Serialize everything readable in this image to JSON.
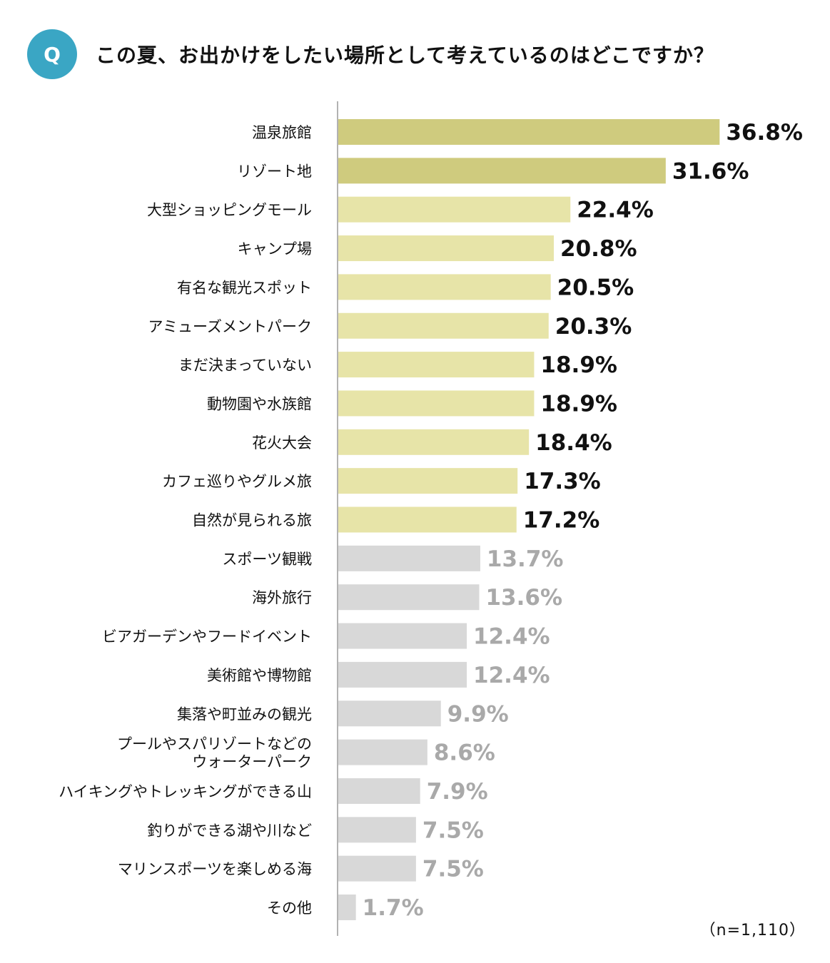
{
  "question_badge": "Q",
  "title": "この夏、お出かけをしたい場所として考えているのはどこですか？",
  "sample_note": "（n=1,110）",
  "colors": {
    "badge": "#3aa6c4",
    "bar_top": "#cfcb7e",
    "bar_mid": "#e7e4a8",
    "bar_low": "#d8d8d8",
    "label_dark": "#111111",
    "label_gray": "#a9a9a9",
    "axis": "#999999"
  },
  "chart_data": {
    "type": "bar",
    "orientation": "horizontal",
    "title": "この夏、お出かけをしたい場所として考えているのはどこですか？",
    "unit": "%",
    "categories": [
      "温泉旅館",
      "リゾート地",
      "大型ショッピングモール",
      "キャンプ場",
      "有名な観光スポット",
      "アミューズメントパーク",
      "まだ決まっていない",
      "動物園や水族館",
      "花火大会",
      "カフェ巡りやグルメ旅",
      "自然が見られる旅",
      "スポーツ観戦",
      "海外旅行",
      "ビアガーデンやフードイベント",
      "美術館や博物館",
      "集落や町並みの観光",
      "プールやスパリゾートなどの\nウォーターパーク",
      "ハイキングやトレッキングができる山",
      "釣りができる湖や川など",
      "マリンスポーツを楽しめる海",
      "その他"
    ],
    "values": [
      36.8,
      31.6,
      22.4,
      20.8,
      20.5,
      20.3,
      18.9,
      18.9,
      18.4,
      17.3,
      17.2,
      13.7,
      13.6,
      12.4,
      12.4,
      9.9,
      8.6,
      7.9,
      7.5,
      7.5,
      1.7
    ],
    "value_labels": [
      "36.8%",
      "31.6%",
      "22.4%",
      "20.8%",
      "20.5%",
      "20.3%",
      "18.9%",
      "18.9%",
      "18.4%",
      "17.3%",
      "17.2%",
      "13.7%",
      "13.6%",
      "12.4%",
      "12.4%",
      "9.9%",
      "8.6%",
      "7.9%",
      "7.5%",
      "7.5%",
      "1.7%"
    ],
    "tiers": [
      "top",
      "top",
      "mid",
      "mid",
      "mid",
      "mid",
      "mid",
      "mid",
      "mid",
      "mid",
      "mid",
      "low",
      "low",
      "low",
      "low",
      "low",
      "low",
      "low",
      "low",
      "low",
      "low"
    ],
    "grid": false,
    "legend": "none"
  }
}
